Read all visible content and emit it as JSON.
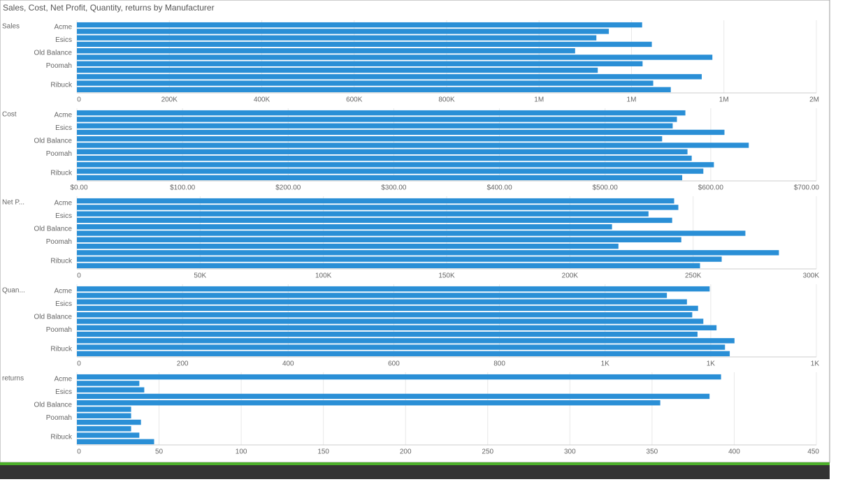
{
  "title": "Sales, Cost, Net Profit, Quantity, returns by Manufacturer",
  "chart_data": [
    {
      "type": "bar",
      "orientation": "horizontal",
      "title": "Sales",
      "color": "#2a8fd6",
      "grid": true,
      "categories": [
        "Acme",
        null,
        "Esics",
        null,
        "Old Balance",
        null,
        "Poomah",
        null,
        null,
        "Ribuck",
        null
      ],
      "values": [
        1223000,
        1151000,
        1124000,
        1244000,
        1078000,
        1375000,
        1224000,
        1127000,
        1352000,
        1247000,
        1285000
      ],
      "xlim": [
        0,
        1600000
      ],
      "xticks": [
        0,
        {
          "value": 200000,
          "label": "200K"
        },
        {
          "value": 400000,
          "label": "400K"
        },
        {
          "value": 600000,
          "label": "600K"
        },
        {
          "value": 800000,
          "label": "800K"
        },
        {
          "value": 1000000,
          "label": "1M"
        },
        {
          "value": 1200000,
          "label": "1M"
        },
        {
          "value": 1400000,
          "label": "1M"
        },
        {
          "value": 1600000,
          "label": "2M"
        }
      ]
    },
    {
      "type": "bar",
      "orientation": "horizontal",
      "title": "Cost",
      "color": "#2a8fd6",
      "grid": true,
      "categories": [
        "Acme",
        null,
        "Esics",
        null,
        "Old Balance",
        null,
        "Poomah",
        null,
        null,
        "Ribuck",
        null
      ],
      "values": [
        576,
        568,
        564,
        613,
        554,
        636,
        578,
        582,
        603,
        593,
        573
      ],
      "xlim": [
        0,
        700
      ],
      "xticks": [
        {
          "value": 0,
          "label": "$0.00"
        },
        {
          "value": 100,
          "label": "$100.00"
        },
        {
          "value": 200,
          "label": "$200.00"
        },
        {
          "value": 300,
          "label": "$300.00"
        },
        {
          "value": 400,
          "label": "$400.00"
        },
        {
          "value": 500,
          "label": "$500.00"
        },
        {
          "value": 600,
          "label": "$600.00"
        },
        {
          "value": 700,
          "label": "$700.00"
        }
      ]
    },
    {
      "type": "bar",
      "orientation": "horizontal",
      "title": "Net P...",
      "color": "#2a8fd6",
      "grid": true,
      "categories": [
        "Acme",
        null,
        "Esics",
        null,
        "Old Balance",
        null,
        "Poomah",
        null,
        null,
        "Ribuck",
        null
      ],
      "values": [
        242300,
        244000,
        231900,
        241500,
        217100,
        271200,
        245200,
        219700,
        284800,
        261600,
        252800
      ],
      "xlim": [
        0,
        300000
      ],
      "xticks": [
        0,
        {
          "value": 50000,
          "label": "50K"
        },
        {
          "value": 100000,
          "label": "100K"
        },
        {
          "value": 150000,
          "label": "150K"
        },
        {
          "value": 200000,
          "label": "200K"
        },
        {
          "value": 250000,
          "label": "250K"
        },
        {
          "value": 300000,
          "label": "300K"
        }
      ]
    },
    {
      "type": "bar",
      "orientation": "horizontal",
      "title": "Quan...",
      "color": "#2a8fd6",
      "grid": true,
      "categories": [
        "Acme",
        null,
        "Esics",
        null,
        "Old Balance",
        null,
        "Poomah",
        null,
        null,
        "Ribuck",
        null
      ],
      "values": [
        1198,
        1117,
        1155,
        1176,
        1165,
        1186,
        1211,
        1175,
        1245,
        1227,
        1236
      ],
      "xlim": [
        0,
        1400
      ],
      "xticks": [
        0,
        200,
        400,
        600,
        800,
        {
          "value": 1000,
          "label": "1K"
        },
        {
          "value": 1200,
          "label": "1K"
        },
        {
          "value": 1400,
          "label": "1K"
        }
      ]
    },
    {
      "type": "bar",
      "orientation": "horizontal",
      "title": "returns",
      "color": "#2a8fd6",
      "grid": true,
      "categories": [
        "Acme",
        null,
        "Esics",
        null,
        "Old Balance",
        null,
        "Poomah",
        null,
        null,
        "Ribuck",
        null
      ],
      "values": [
        392,
        38,
        41,
        385,
        355,
        33,
        33,
        39,
        33,
        38,
        47
      ],
      "xlim": [
        0,
        450
      ],
      "xticks": [
        0,
        50,
        100,
        150,
        200,
        250,
        300,
        350,
        400,
        450
      ]
    }
  ]
}
